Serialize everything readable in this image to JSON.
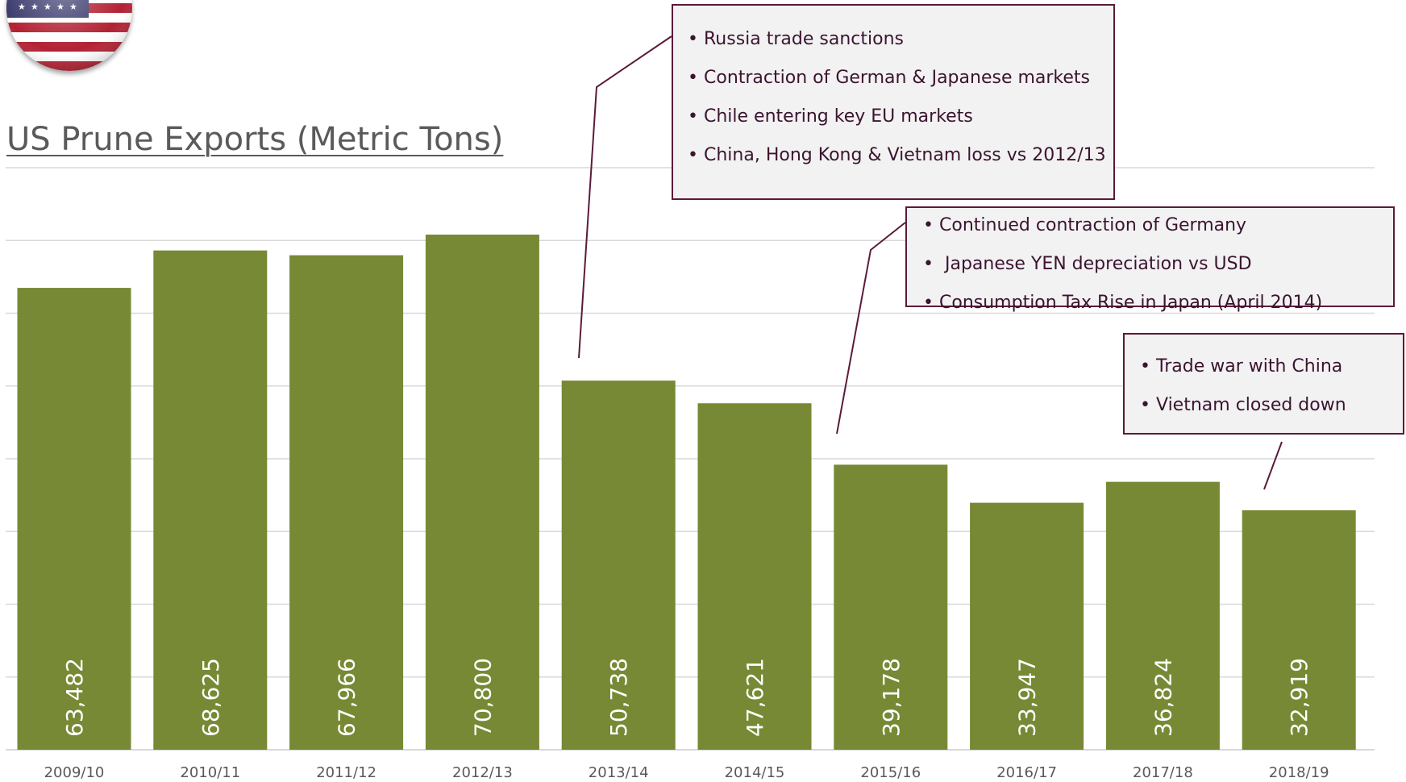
{
  "chart_data": {
    "type": "bar",
    "title": "US Prune Exports (Metric Tons)",
    "categories": [
      "2009/10",
      "2010/11",
      "2011/12",
      "2012/13",
      "2013/14",
      "2014/15",
      "2015/16",
      "2016/17",
      "2017/18",
      "2018/19"
    ],
    "values": [
      63482,
      68625,
      67966,
      70800,
      50738,
      47621,
      39178,
      33947,
      36824,
      32919
    ],
    "value_labels": [
      "63,482",
      "68,625",
      "67,966",
      "70,800",
      "50,738",
      "47,621",
      "39,178",
      "33,947",
      "36,824",
      "32,919"
    ],
    "ylim": [
      0,
      80000
    ],
    "y_gridline_step": 10000,
    "grid": true,
    "bar_color": "#778934",
    "label_color": "#ffffff"
  },
  "annotations": [
    {
      "id": "box1",
      "items": [
        "Russia trade sanctions",
        "Contraction of German & Japanese markets",
        "Chile entering key EU markets",
        "China, Hong Kong & Vietnam loss vs 2012/13"
      ]
    },
    {
      "id": "box2",
      "items": [
        "Continued contraction of Germany",
        " Japanese YEN depreciation vs USD",
        "Consumption Tax Rise in Japan (April 2014)"
      ]
    },
    {
      "id": "box3",
      "items": [
        "Trade war with China",
        "Vietnam closed down"
      ]
    }
  ],
  "colors": {
    "annotation_border": "#5b1a3a",
    "annotation_fill": "#f2f2f2",
    "annotation_text": "#3b1430",
    "gridline": "#d9d9d9",
    "title": "#5a5a5a"
  },
  "icons": {
    "flag": "us-flag-icon"
  }
}
